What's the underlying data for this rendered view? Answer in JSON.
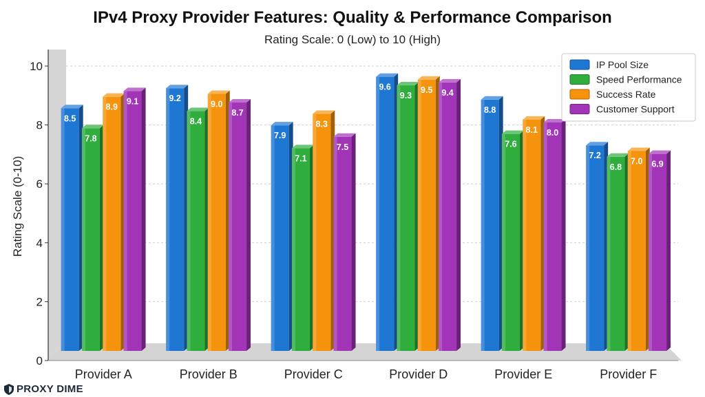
{
  "brand": {
    "name": "PROXY DIME",
    "icon": "shield-logo-icon"
  },
  "chart_data": {
    "type": "bar",
    "title": "IPv4 Proxy Provider Features: Quality & Performance Comparison",
    "subtitle": "Rating Scale: 0 (Low) to 10 (High)",
    "xlabel": "",
    "ylabel": "Rating Scale (0-10)",
    "ylim": [
      0,
      10
    ],
    "yticks": [
      0,
      2,
      4,
      6,
      8,
      10
    ],
    "grid": true,
    "legend_position": "top-right",
    "categories": [
      "Provider A",
      "Provider B",
      "Provider C",
      "Provider D",
      "Provider E",
      "Provider F"
    ],
    "series": [
      {
        "name": "IP Pool Size",
        "color": "#1f77d4",
        "values": [
          8.5,
          9.2,
          7.9,
          9.6,
          8.8,
          7.2
        ]
      },
      {
        "name": "Speed Performance",
        "color": "#2fae3d",
        "values": [
          7.8,
          8.4,
          7.1,
          9.3,
          7.6,
          6.8
        ]
      },
      {
        "name": "Success Rate",
        "color": "#f5940c",
        "values": [
          8.9,
          9.0,
          8.3,
          9.5,
          8.1,
          7.0
        ]
      },
      {
        "name": "Customer Support",
        "color": "#a234b8",
        "values": [
          9.1,
          8.7,
          7.5,
          9.4,
          8.0,
          6.9
        ]
      }
    ]
  }
}
